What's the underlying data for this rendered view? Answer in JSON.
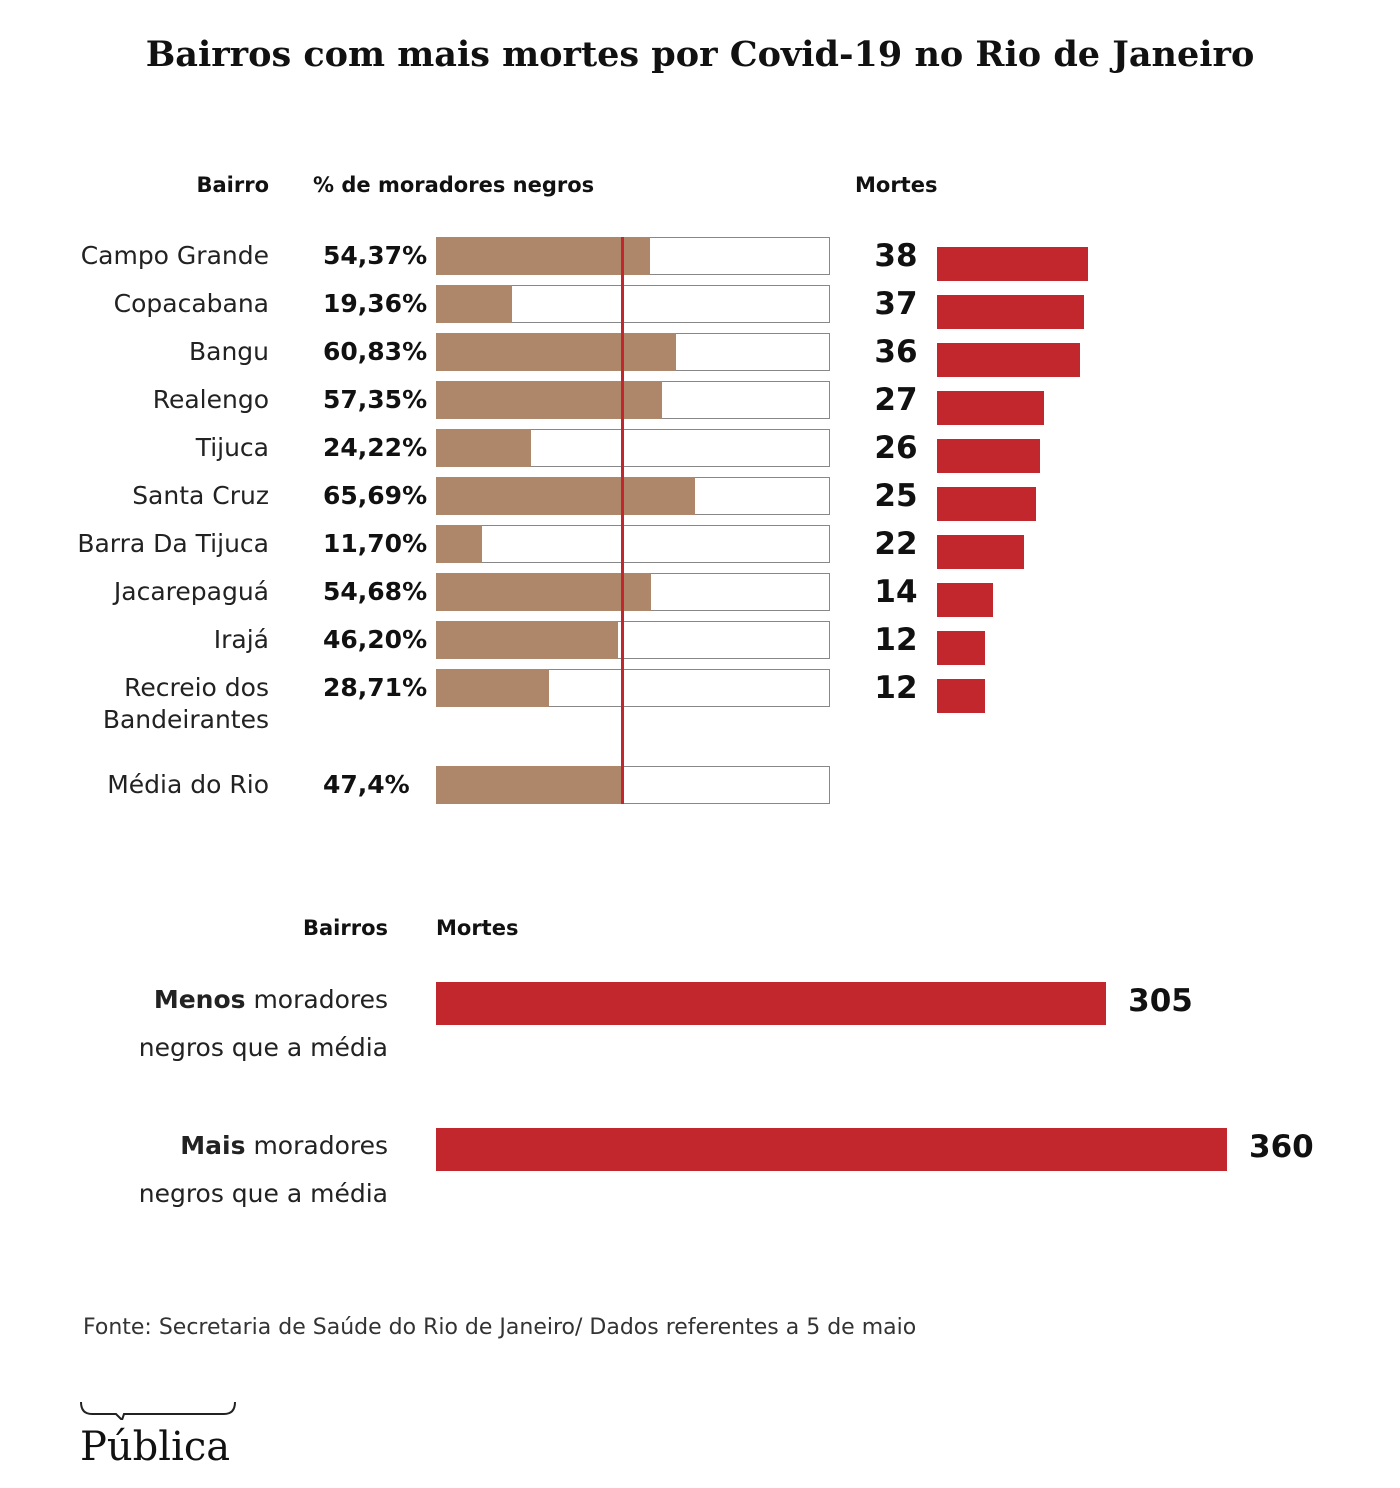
{
  "title": "Bairros com mais mortes por Covid-19 no Rio de Janeiro",
  "chart_data": [
    {
      "type": "bar",
      "category_label": "Bairro",
      "x_label": "% de moradores negros",
      "categories": [
        "Campo Grande",
        "Copacabana",
        "Bangu",
        "Realengo",
        "Tijuca",
        "Santa Cruz",
        "Barra Da Tijuca",
        "Jacarepaguá",
        "Irajá",
        "Recreio dos Bandeirantes"
      ],
      "values": [
        54.37,
        19.36,
        60.83,
        57.35,
        24.22,
        65.69,
        11.7,
        54.68,
        46.2,
        28.71
      ],
      "value_labels": [
        "54,37%",
        "19,36%",
        "60,83%",
        "57,35%",
        "24,22%",
        "65,69%",
        "11,70%",
        "54,68%",
        "46,20%",
        "28,71%"
      ],
      "color": "#ae876a",
      "xlim": [
        0,
        100
      ],
      "reference": {
        "label": "Média do Rio",
        "value": 47.4,
        "value_label": "47,4%",
        "color": "#c1272d"
      }
    },
    {
      "type": "bar",
      "x_label": "Mortes",
      "values": [
        38,
        37,
        36,
        27,
        26,
        25,
        22,
        14,
        12,
        12
      ],
      "color": "#c1272d"
    },
    {
      "type": "bar",
      "category_label": "Bairros",
      "x_label": "Mortes",
      "categories": [
        "Menos moradores negros que a média",
        "Mais moradores negros que a média"
      ],
      "values": [
        305,
        360
      ],
      "color": "#c1272d"
    }
  ],
  "source": "Fonte: Secretaria de Saúde do Rio de Janeiro/ Dados referentes a 5 de maio",
  "logo": "Pública"
}
